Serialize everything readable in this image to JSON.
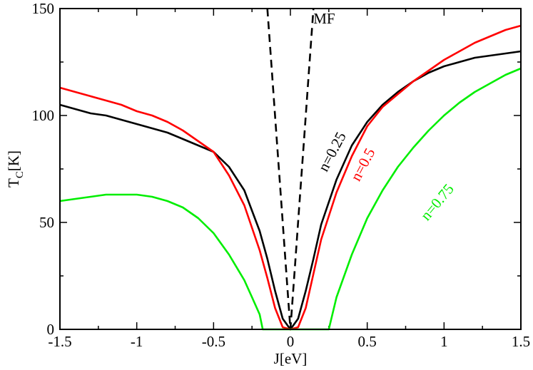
{
  "chart_data": {
    "type": "line",
    "xlabel": "J[eV]",
    "ylabel_main": "T",
    "ylabel_sub": "C",
    "ylabel_unit": "[K]",
    "xlim": [
      -1.5,
      1.5
    ],
    "ylim": [
      0,
      150
    ],
    "xticks": [
      -1.5,
      -1,
      -0.5,
      0,
      0.5,
      1,
      1.5
    ],
    "xtick_labels": [
      "-1.5",
      "-1",
      "-0.5",
      "0",
      "0.5",
      "1",
      "1.5"
    ],
    "yticks": [
      0,
      50,
      100,
      150
    ],
    "ytick_labels": [
      "0",
      "50",
      "100",
      "150"
    ],
    "grid": false,
    "series": [
      {
        "name": "MF",
        "color": "#000000",
        "dashed": true,
        "x": [
          -0.15,
          -0.12,
          -0.09,
          -0.06,
          -0.03,
          0,
          0.03,
          0.06,
          0.09,
          0.12,
          0.15
        ],
        "y": [
          150,
          120,
          90,
          60,
          30,
          0,
          30,
          60,
          90,
          120,
          150
        ]
      },
      {
        "name": "n=0.25",
        "color": "#000000",
        "dashed": false,
        "x": [
          -1.5,
          -1.4,
          -1.3,
          -1.2,
          -1.1,
          -1.0,
          -0.9,
          -0.8,
          -0.7,
          -0.6,
          -0.5,
          -0.4,
          -0.3,
          -0.2,
          -0.15,
          -0.1,
          -0.05,
          0,
          0.05,
          0.1,
          0.15,
          0.2,
          0.3,
          0.4,
          0.5,
          0.6,
          0.7,
          0.8,
          0.9,
          1.0,
          1.1,
          1.2,
          1.3,
          1.4,
          1.5
        ],
        "y": [
          105,
          103,
          101,
          100,
          98,
          96,
          94,
          92,
          89,
          86,
          83,
          76,
          65,
          46,
          33,
          18,
          5,
          0,
          5,
          18,
          33,
          49,
          70,
          86,
          97,
          105,
          111,
          116,
          120,
          123,
          125,
          127,
          128,
          129,
          130
        ]
      },
      {
        "name": "n=0.5",
        "color": "#ff0000",
        "dashed": false,
        "x": [
          -1.5,
          -1.4,
          -1.3,
          -1.2,
          -1.1,
          -1.0,
          -0.9,
          -0.8,
          -0.7,
          -0.6,
          -0.5,
          -0.4,
          -0.3,
          -0.2,
          -0.15,
          -0.1,
          -0.05,
          0,
          0.05,
          0.1,
          0.15,
          0.2,
          0.3,
          0.4,
          0.5,
          0.6,
          0.7,
          0.8,
          0.9,
          1.0,
          1.1,
          1.2,
          1.3,
          1.4,
          1.5
        ],
        "y": [
          113,
          111,
          109,
          107,
          105,
          102,
          100,
          97,
          93,
          88,
          83,
          72,
          58,
          37,
          24,
          10,
          1,
          0,
          1,
          10,
          26,
          42,
          64,
          81,
          95,
          104,
          110,
          116,
          121,
          126,
          130,
          134,
          137,
          140,
          142
        ]
      },
      {
        "name": "n=0.75",
        "color": "#00ee00",
        "dashed": false,
        "x": [
          -1.5,
          -1.4,
          -1.3,
          -1.2,
          -1.1,
          -1.0,
          -0.9,
          -0.8,
          -0.7,
          -0.6,
          -0.5,
          -0.4,
          -0.3,
          -0.25,
          -0.2,
          -0.18,
          0.25,
          0.3,
          0.4,
          0.5,
          0.6,
          0.7,
          0.8,
          0.9,
          1.0,
          1.1,
          1.2,
          1.3,
          1.4,
          1.5
        ],
        "y": [
          60,
          61,
          62,
          63,
          63,
          63,
          62,
          60,
          57,
          52,
          45,
          35,
          23,
          15,
          7,
          0,
          0,
          15,
          35,
          52,
          65,
          76,
          85,
          93,
          100,
          106,
          111,
          115,
          119,
          122
        ]
      }
    ],
    "annotations": [
      {
        "text": "MF",
        "color": "#000000",
        "x": 0.22,
        "y": 143,
        "rotation": 0
      },
      {
        "text": "n=0.25",
        "color": "#000000",
        "x": 0.3,
        "y": 82,
        "rotation": -62
      },
      {
        "text": "n=0.5",
        "color": "#ff0000",
        "x": 0.5,
        "y": 76,
        "rotation": -62
      },
      {
        "text": "n=0.75",
        "color": "#00ee00",
        "x": 0.98,
        "y": 58,
        "rotation": -50
      }
    ]
  }
}
